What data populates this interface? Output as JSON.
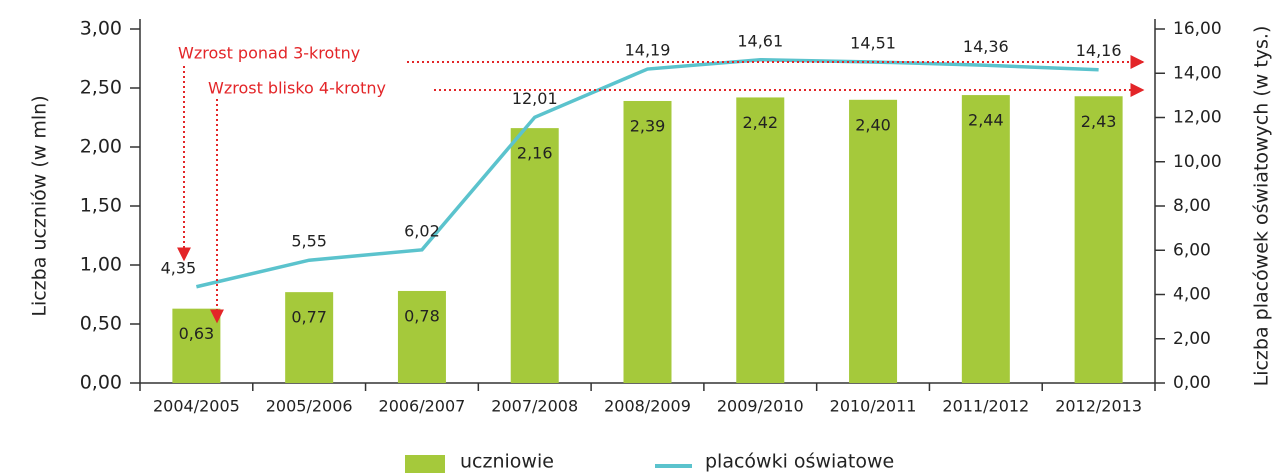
{
  "chart_data": {
    "type": "bar-line",
    "categories": [
      "2004/2005",
      "2005/2006",
      "2006/2007",
      "2007/2008",
      "2008/2009",
      "2009/2010",
      "2010/2011",
      "2011/2012",
      "2012/2013"
    ],
    "series": [
      {
        "name": "uczniowie",
        "type": "bar",
        "axis": "y",
        "color": "#a5c93b",
        "values": [
          0.63,
          0.77,
          0.78,
          2.16,
          2.39,
          2.42,
          2.4,
          2.44,
          2.43
        ],
        "value_labels": [
          "0,63",
          "0,77",
          "0,78",
          "2,16",
          "2,39",
          "2,42",
          "2,40",
          "2,44",
          "2,43"
        ]
      },
      {
        "name": "placówki oświatowe",
        "type": "line",
        "axis": "y2",
        "color": "#5bc3cd",
        "values": [
          4.35,
          5.55,
          6.02,
          12.01,
          14.19,
          14.61,
          14.51,
          14.36,
          14.16
        ],
        "value_labels": [
          "4,35",
          "5,55",
          "6,02",
          "12,01",
          "14,19",
          "14,61",
          "14,51",
          "14,36",
          "14,16"
        ]
      }
    ],
    "ylabel": "Liczba uczniów (w mln)",
    "y2label": "Liczba placówek oświatowych (w tys.)",
    "ylim": [
      0,
      3
    ],
    "yticks": [
      {
        "value": 0,
        "label": "0,00"
      },
      {
        "value": 0.5,
        "label": "0,50"
      },
      {
        "value": 1,
        "label": "1,00"
      },
      {
        "value": 1.5,
        "label": "1,50"
      },
      {
        "value": 2,
        "label": "2,00"
      },
      {
        "value": 2.5,
        "label": "2,50"
      },
      {
        "value": 3,
        "label": "3,00"
      }
    ],
    "y2lim": [
      0,
      16
    ],
    "y2ticks": [
      {
        "value": 0,
        "label": "0,00"
      },
      {
        "value": 2,
        "label": "2,00"
      },
      {
        "value": 4,
        "label": "4,00"
      },
      {
        "value": 6,
        "label": "6,00"
      },
      {
        "value": 8,
        "label": "8,00"
      },
      {
        "value": 10,
        "label": "10,00"
      },
      {
        "value": 12,
        "label": "12,00"
      },
      {
        "value": 14,
        "label": "14,00"
      },
      {
        "value": 16,
        "label": "16,00"
      }
    ],
    "annotations": [
      "Wzrost ponad 3-krotny",
      "Wzrost blisko 4-krotny"
    ],
    "annotation_color": "#e32528",
    "legend": "bottom"
  }
}
